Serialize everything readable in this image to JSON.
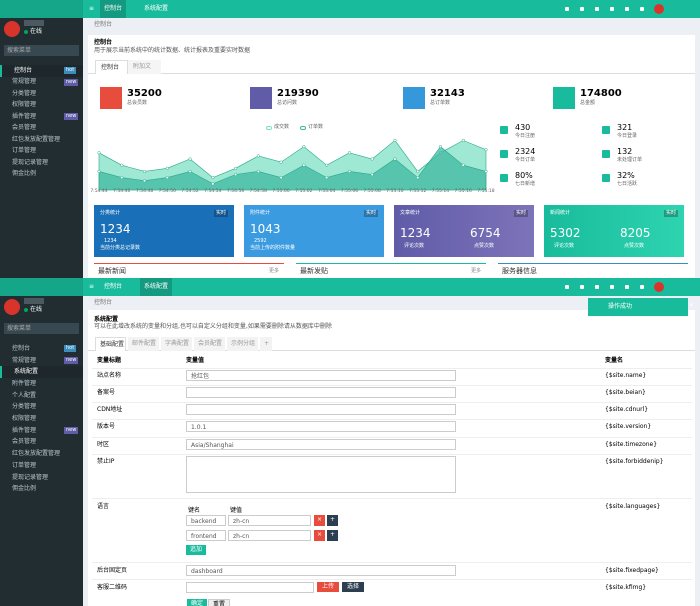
{
  "header": {
    "tabs": [
      "控制台",
      "系统配置"
    ]
  },
  "dashboard": {
    "sidebar": {
      "status": "在线",
      "search": "搜索菜单",
      "menu": [
        {
          "label": "控制台",
          "badge": "hot"
        },
        {
          "label": "常规管理",
          "badge": "new"
        },
        {
          "label": "分类管理"
        },
        {
          "label": "权限管理"
        },
        {
          "label": "插件管理",
          "badge": "new"
        },
        {
          "label": "会员管理"
        },
        {
          "label": "红包发放配置管理"
        },
        {
          "label": "订单管理"
        },
        {
          "label": "提现记录管理"
        },
        {
          "label": "佣金比例"
        }
      ]
    },
    "breadcrumb": "控制台",
    "title": "控制台",
    "description": "用于展示当前系统中的统计数据、统计报表及重要实时数据",
    "tabs": [
      "控制台",
      "附加文"
    ],
    "stats": [
      {
        "value": 35200,
        "label": "总会员数"
      },
      {
        "value": 219390,
        "label": "总访问数"
      },
      {
        "value": 32143,
        "label": "总订单数"
      },
      {
        "value": 174800,
        "label": "总金额"
      }
    ],
    "chart_data": {
      "type": "area",
      "categories": [
        "7:54:44",
        "7:54:46",
        "7:54:48",
        "7:54:50",
        "7:54:52",
        "7:54:54",
        "7:54:56",
        "7:54:58",
        "7:55:00",
        "7:55:02",
        "7:55:04",
        "7:55:06",
        "7:55:08",
        "7:55:10",
        "7:55:12",
        "7:55:14",
        "7:55:16",
        "7:55:18"
      ],
      "ylim": [
        0,
        100
      ],
      "series": [
        {
          "name": "成交数",
          "color": "#7fe0c4",
          "values": [
            60,
            40,
            30,
            35,
            50,
            20,
            35,
            55,
            45,
            70,
            40,
            60,
            50,
            80,
            30,
            60,
            80,
            65
          ]
        },
        {
          "name": "订单数",
          "color": "#3fb8a0",
          "values": [
            30,
            20,
            15,
            20,
            30,
            10,
            25,
            30,
            20,
            40,
            20,
            30,
            25,
            50,
            20,
            70,
            40,
            30
          ]
        }
      ]
    },
    "quick": [
      {
        "value": "430",
        "label": "今日注册"
      },
      {
        "value": "321",
        "label": "今日登录"
      },
      {
        "value": "2324",
        "label": "今日订单"
      },
      {
        "value": "132",
        "label": "未处理订单"
      },
      {
        "value": "80%",
        "label": "七日新增"
      },
      {
        "value": "32%",
        "label": "七日活跃"
      }
    ],
    "cards": [
      {
        "title": "分类统计",
        "tag": "实时",
        "value": 1234,
        "sub": "1234",
        "desc": "当前分类总记录数"
      },
      {
        "title": "附件统计",
        "tag": "实时",
        "value": 1043,
        "sub": "2592",
        "desc": "当前上传的附件数量"
      },
      {
        "title": "文章统计",
        "tag": "实时",
        "a": 1234,
        "al": "评论次数",
        "b": 6754,
        "bl": "点赞次数"
      },
      {
        "title": "新闻统计",
        "tag": "实时",
        "a": 5302,
        "al": "评论次数",
        "b": 8205,
        "bl": "点赞次数"
      }
    ],
    "sections": [
      {
        "title": "最新新闻",
        "more": "更多"
      },
      {
        "title": "最新发贴",
        "more": "更多"
      },
      {
        "title": "服务器信息"
      }
    ]
  },
  "settings": {
    "sidebar": {
      "status": "在线",
      "search": "搜索菜单",
      "menu": [
        {
          "label": "控制台",
          "badge": "hot"
        },
        {
          "label": "常规管理",
          "badge": "new"
        },
        {
          "label": "系统配置"
        },
        {
          "label": "附件管理"
        },
        {
          "label": "个人配置"
        },
        {
          "label": "分类管理"
        },
        {
          "label": "权限管理"
        },
        {
          "label": "插件管理",
          "badge": "new"
        },
        {
          "label": "会员管理"
        },
        {
          "label": "红包发放配置管理"
        },
        {
          "label": "订单管理"
        },
        {
          "label": "提现记录管理"
        },
        {
          "label": "佣金比例"
        }
      ]
    },
    "breadcrumb": "控制台",
    "title": "系统配置",
    "description": "可以在此增改系统的变量和分组,也可以自定义分组和变量,如果需要删除请从数据库中删除",
    "tabs": [
      "基础配置",
      "邮件配置",
      "字典配置",
      "会员配置",
      "示例分组",
      "+"
    ],
    "toast": "操作成功",
    "columns": [
      "变量标题",
      "变量值",
      "变量名"
    ],
    "rows": [
      {
        "title": "站点名称",
        "value": "抢红包",
        "name": "{$site.name}"
      },
      {
        "title": "备案号",
        "value": "",
        "name": "{$site.beian}"
      },
      {
        "title": "CDN地址",
        "value": "",
        "name": "{$site.cdnurl}"
      },
      {
        "title": "版本号",
        "value": "1.0.1",
        "name": "{$site.version}"
      },
      {
        "title": "时区",
        "value": "Asia/Shanghai",
        "name": "{$site.timezone}"
      },
      {
        "title": "禁止IP",
        "value": "",
        "name": "{$site.forbiddenip}"
      }
    ],
    "languages": {
      "title": "语言",
      "name": "{$site.languages}",
      "key": "键名",
      "val": "键值",
      "items": [
        [
          "backend",
          "zh-cn"
        ],
        [
          "frontend",
          "zh-cn"
        ]
      ],
      "add": "追加"
    },
    "fixedpage": {
      "title": "后台固定页",
      "value": "dashboard",
      "name": "{$site.fixedpage}"
    },
    "kfimg": {
      "title": "客服二维码",
      "name": "{$site.kfimg}",
      "upload": "上传",
      "choose": "选择"
    },
    "buttons": [
      "确定",
      "重置"
    ]
  }
}
